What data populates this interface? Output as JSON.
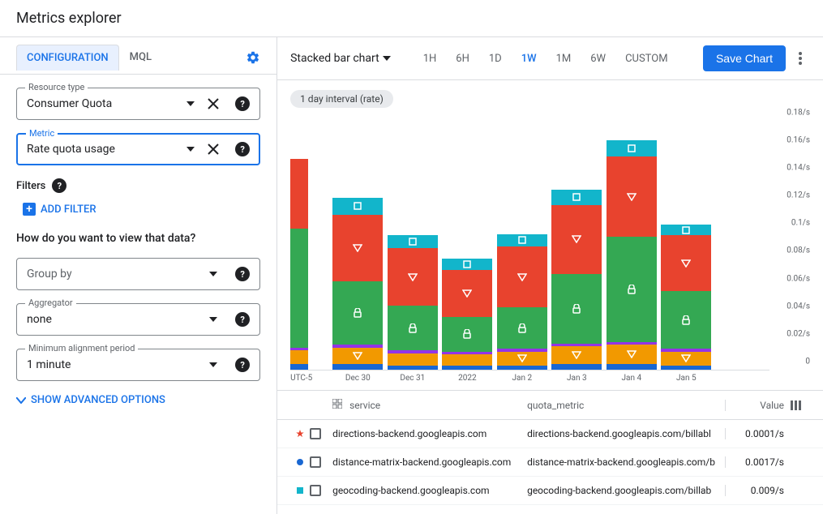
{
  "header": {
    "title": "Metrics explorer"
  },
  "tabs": {
    "configuration": "CONFIGURATION",
    "mql": "MQL",
    "active": "configuration"
  },
  "resource_type": {
    "label": "Resource type",
    "value": "Consumer Quota"
  },
  "metric": {
    "label": "Metric",
    "value": "Rate quota usage"
  },
  "filters": {
    "label": "Filters",
    "add": "ADD FILTER"
  },
  "view_question": "How do you want to view that data?",
  "group_by": {
    "placeholder": "Group by"
  },
  "aggregator": {
    "label": "Aggregator",
    "value": "none"
  },
  "alignment": {
    "label": "Minimum alignment period",
    "value": "1 minute"
  },
  "show_advanced": "SHOW ADVANCED OPTIONS",
  "toolbar": {
    "chart_type": "Stacked bar chart",
    "ranges": [
      "1H",
      "6H",
      "1D",
      "1W",
      "1M",
      "6W",
      "CUSTOM"
    ],
    "active_range": "1W",
    "save": "Save Chart"
  },
  "interval_chip": "1 day interval (rate)",
  "chart": {
    "type": "stacked-bar",
    "y_max": 0.185,
    "y_ticks": [
      {
        "v": 0,
        "label": "0"
      },
      {
        "v": 0.02,
        "label": "0.02/s"
      },
      {
        "v": 0.04,
        "label": "0.04/s"
      },
      {
        "v": 0.06,
        "label": "0.06/s"
      },
      {
        "v": 0.08,
        "label": "0.08/s"
      },
      {
        "v": 0.1,
        "label": "0.1/s"
      },
      {
        "v": 0.12,
        "label": "0.12/s"
      },
      {
        "v": 0.14,
        "label": "0.14/s"
      },
      {
        "v": 0.16,
        "label": "0.16/s"
      },
      {
        "v": 0.18,
        "label": "0.18/s"
      }
    ],
    "x_labels": [
      "UTC-5",
      "Dec 30",
      "Dec 31",
      "2022",
      "Jan 2",
      "Jan 3",
      "Jan 4",
      "Jan 5"
    ],
    "colors": {
      "navy": "#1967d2",
      "orange": "#f29900",
      "purple": "#9334e6",
      "green": "#34a853",
      "red": "#e8432e",
      "teal": "#12b5cb"
    },
    "bars": [
      {
        "x": 0,
        "partial": true,
        "segs": [
          {
            "c": "navy",
            "v": 0.004
          },
          {
            "c": "orange",
            "v": 0.01
          },
          {
            "c": "purple",
            "v": 0.002
          },
          {
            "c": "green",
            "v": 0.086
          },
          {
            "c": "red",
            "v": 0.05
          }
        ]
      },
      {
        "x": 1,
        "segs": [
          {
            "c": "navy",
            "v": 0.004
          },
          {
            "c": "orange",
            "v": 0.012,
            "m": "tri-down"
          },
          {
            "c": "purple",
            "v": 0.002
          },
          {
            "c": "green",
            "v": 0.046,
            "m": "lock"
          },
          {
            "c": "red",
            "v": 0.048,
            "m": "tri-down"
          },
          {
            "c": "teal",
            "v": 0.012,
            "m": "square"
          }
        ]
      },
      {
        "x": 2,
        "segs": [
          {
            "c": "navy",
            "v": 0.003
          },
          {
            "c": "orange",
            "v": 0.009
          },
          {
            "c": "purple",
            "v": 0.002
          },
          {
            "c": "green",
            "v": 0.032,
            "m": "lock"
          },
          {
            "c": "red",
            "v": 0.042,
            "m": "tri-down"
          },
          {
            "c": "teal",
            "v": 0.009,
            "m": "square"
          }
        ]
      },
      {
        "x": 3,
        "segs": [
          {
            "c": "navy",
            "v": 0.003
          },
          {
            "c": "orange",
            "v": 0.008
          },
          {
            "c": "purple",
            "v": 0.002
          },
          {
            "c": "green",
            "v": 0.025,
            "m": "lock"
          },
          {
            "c": "red",
            "v": 0.034,
            "m": "tri-down"
          },
          {
            "c": "teal",
            "v": 0.008,
            "m": "square"
          }
        ]
      },
      {
        "x": 4,
        "segs": [
          {
            "c": "navy",
            "v": 0.003
          },
          {
            "c": "orange",
            "v": 0.01,
            "m": "tri-down"
          },
          {
            "c": "purple",
            "v": 0.002
          },
          {
            "c": "green",
            "v": 0.03,
            "m": "lock"
          },
          {
            "c": "red",
            "v": 0.044,
            "m": "tri-down"
          },
          {
            "c": "teal",
            "v": 0.009,
            "m": "square"
          }
        ]
      },
      {
        "x": 5,
        "segs": [
          {
            "c": "navy",
            "v": 0.004
          },
          {
            "c": "orange",
            "v": 0.013,
            "m": "tri-down"
          },
          {
            "c": "purple",
            "v": 0.002
          },
          {
            "c": "green",
            "v": 0.05,
            "m": "lock"
          },
          {
            "c": "red",
            "v": 0.05,
            "m": "tri-down"
          },
          {
            "c": "teal",
            "v": 0.011,
            "m": "square"
          }
        ]
      },
      {
        "x": 6,
        "segs": [
          {
            "c": "navy",
            "v": 0.004
          },
          {
            "c": "orange",
            "v": 0.014,
            "m": "tri-down"
          },
          {
            "c": "purple",
            "v": 0.002
          },
          {
            "c": "green",
            "v": 0.076,
            "m": "lock"
          },
          {
            "c": "red",
            "v": 0.058,
            "m": "tri-down"
          },
          {
            "c": "teal",
            "v": 0.012,
            "m": "square"
          }
        ]
      },
      {
        "x": 7,
        "segs": [
          {
            "c": "navy",
            "v": 0.003
          },
          {
            "c": "orange",
            "v": 0.01,
            "m": "tri-down"
          },
          {
            "c": "purple",
            "v": 0.002
          },
          {
            "c": "green",
            "v": 0.042,
            "m": "lock"
          },
          {
            "c": "red",
            "v": 0.04,
            "m": "tri-down"
          },
          {
            "c": "teal",
            "v": 0.008,
            "m": "square"
          }
        ]
      }
    ]
  },
  "legend": {
    "headers": {
      "service": "service",
      "quota_metric": "quota_metric",
      "value": "Value"
    },
    "rows": [
      {
        "marker": "star",
        "color": "#e8432e",
        "service": "directions-backend.googleapis.com",
        "quota": "directions-backend.googleapis.com/billabl",
        "value": "0.0001/s"
      },
      {
        "marker": "circle",
        "color": "#1967d2",
        "service": "distance-matrix-backend.googleapis.com",
        "quota": "distance-matrix-backend.googleapis.com/b",
        "value": "0.0017/s"
      },
      {
        "marker": "square",
        "color": "#12b5cb",
        "service": "geocoding-backend.googleapis.com",
        "quota": "geocoding-backend.googleapis.com/billab",
        "value": "0.009/s"
      }
    ]
  }
}
